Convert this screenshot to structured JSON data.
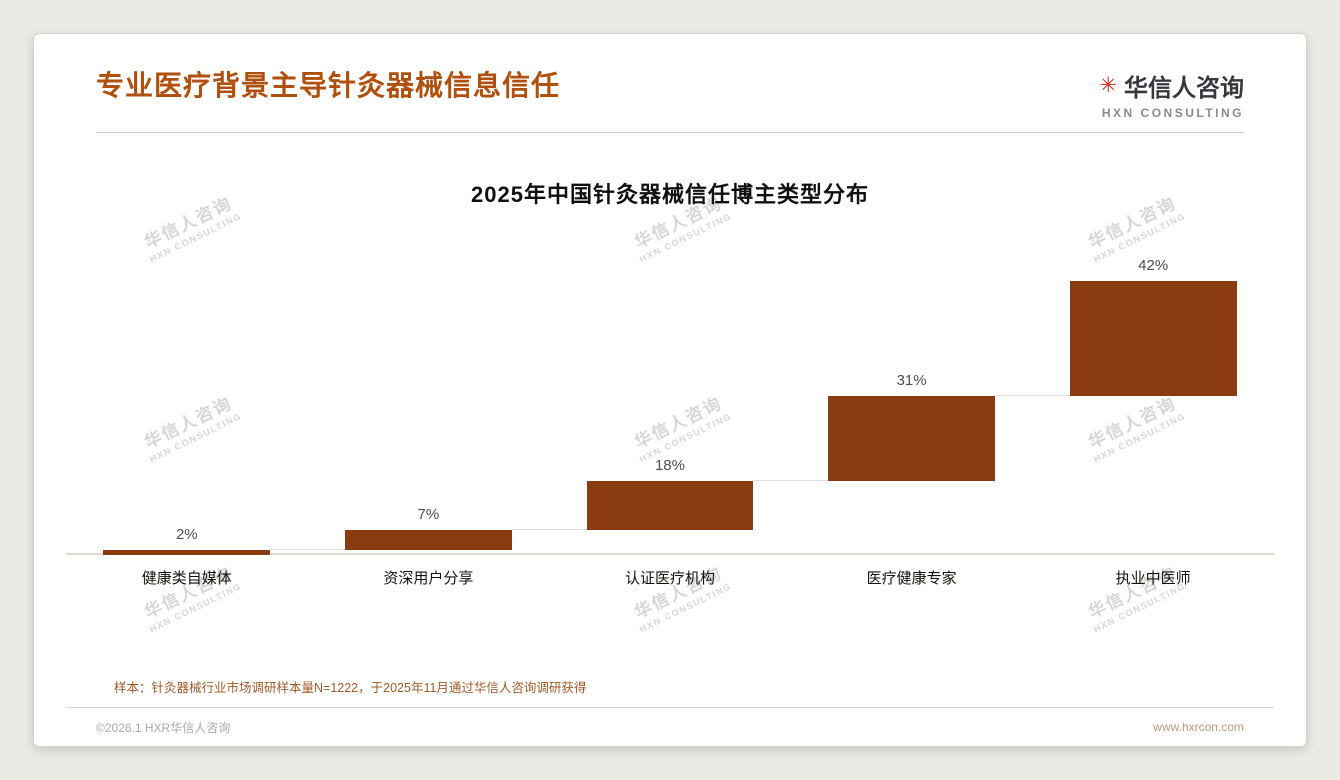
{
  "page": {
    "title": "专业医疗背景主导针灸器械信息信任",
    "logo": {
      "name": "华信人咨询",
      "subtitle": "HXN CONSULTING",
      "icon": "red-asterisk-seal-icon",
      "icon_glyph": "✳",
      "icon_color": "#cf2b1e"
    },
    "watermark": {
      "line1": "华信人咨询",
      "line2": "HXN CONSULTING"
    },
    "footnote": "样本：针灸器械行业市场调研样本量N=1222，于2025年11月通过华信人咨询调研获得",
    "footer": {
      "left": "©2026.1 HXR华信人咨询",
      "right": "www.hxrcon.com"
    },
    "accent_color": "#b0500e"
  },
  "chart_data": {
    "type": "bar",
    "subtype": "waterfall-step",
    "title": "2025年中国针灸器械信任博主类型分布",
    "categories": [
      "健康类自媒体",
      "资深用户分享",
      "认证医疗机构",
      "医疗健康专家",
      "执业中医师"
    ],
    "values": [
      2,
      7,
      18,
      31,
      42
    ],
    "labels": [
      "2%",
      "7%",
      "18%",
      "31%",
      "42%"
    ],
    "cumulative_start": [
      0,
      2,
      9,
      27,
      58
    ],
    "bar_color": "#8a3c10",
    "ylim": [
      0,
      100
    ],
    "grid": false,
    "legend": false,
    "xlabel": "",
    "ylabel": ""
  }
}
